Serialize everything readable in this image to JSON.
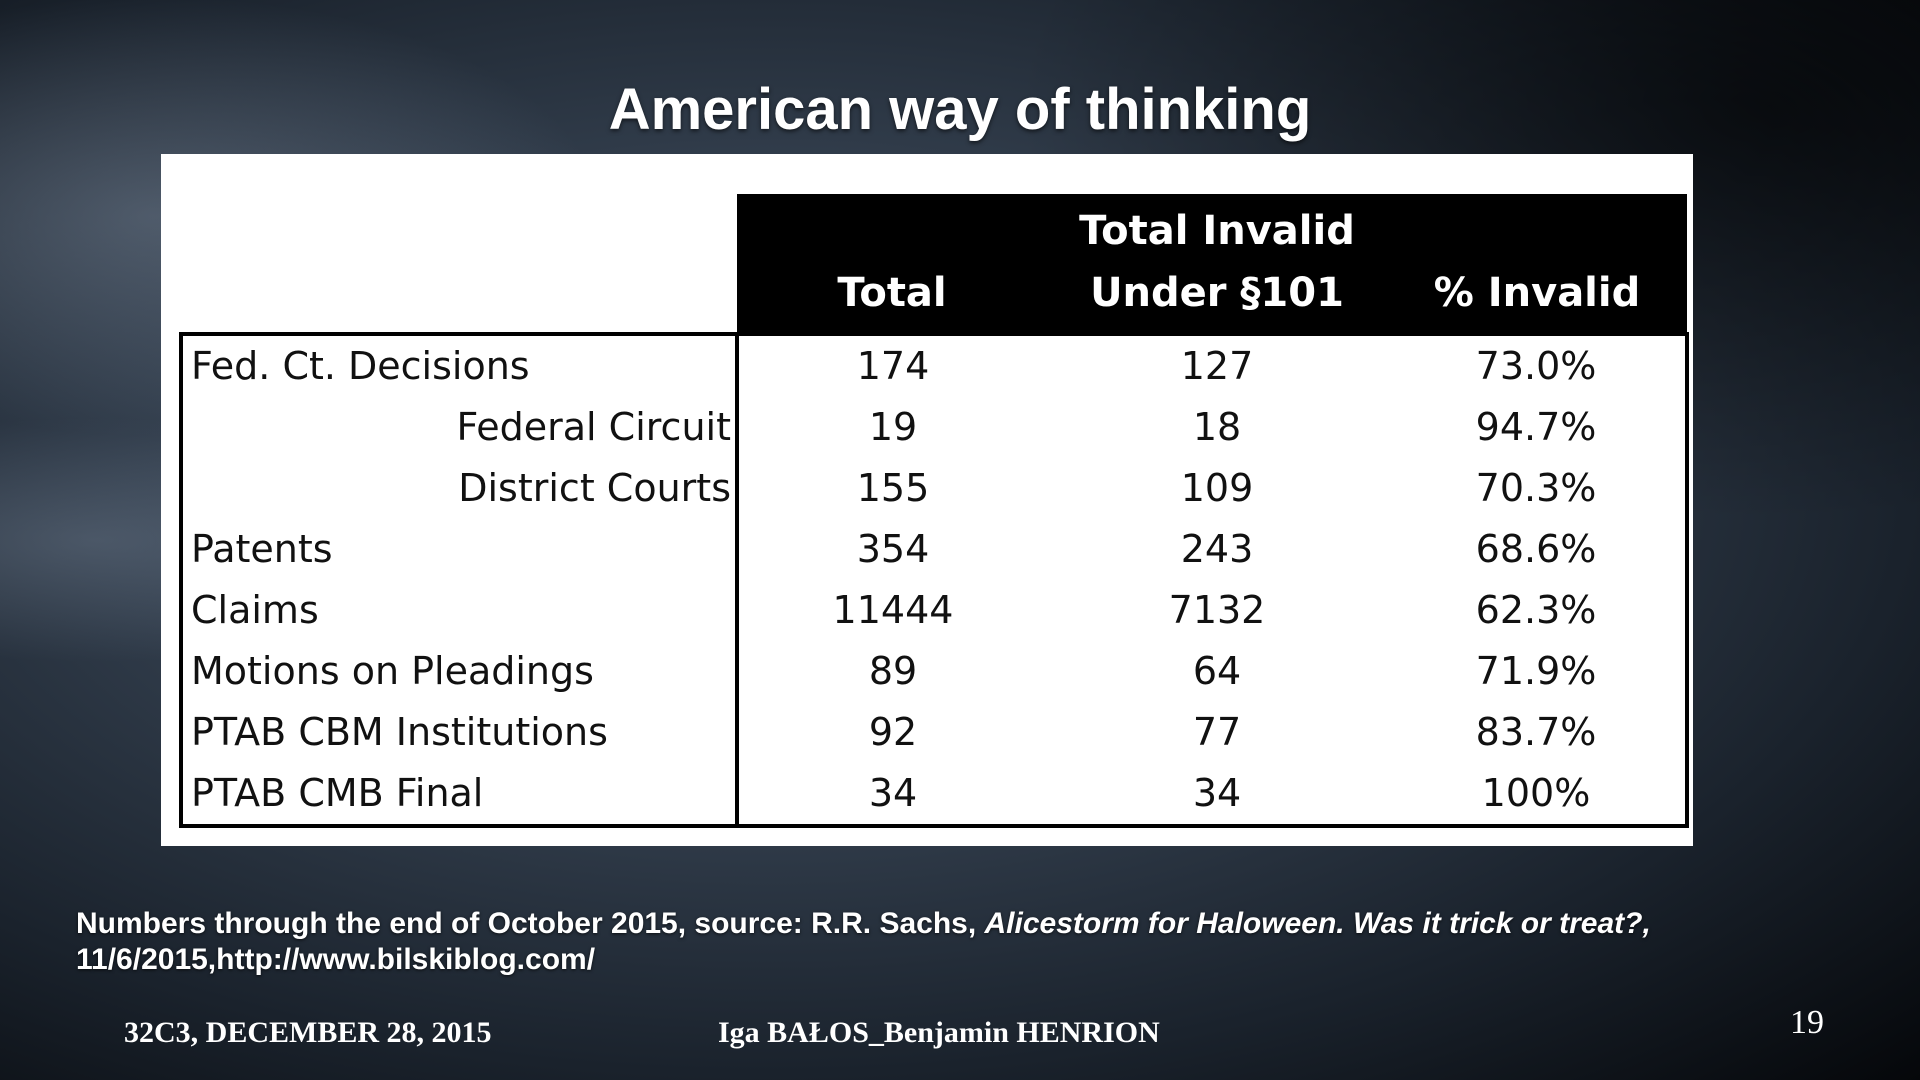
{
  "slide": {
    "title": "American way of thinking",
    "page_number": "19"
  },
  "table": {
    "headers": {
      "total": "Total",
      "invalid_line1": "Total Invalid",
      "invalid_line2": "Under §101",
      "percent": "% Invalid"
    },
    "rows": [
      {
        "label": "Fed. Ct. Decisions",
        "total": "174",
        "invalid": "127",
        "percent": "73.0%"
      },
      {
        "label": "Federal Circuit",
        "total": "19",
        "invalid": "18",
        "percent": "94.7%"
      },
      {
        "label": "District Courts",
        "total": "155",
        "invalid": "109",
        "percent": "70.3%"
      },
      {
        "label": "Patents",
        "total": "354",
        "invalid": "243",
        "percent": "68.6%"
      },
      {
        "label": "Claims",
        "total": "11444",
        "invalid": "7132",
        "percent": "62.3%"
      },
      {
        "label": "Motions on Pleadings",
        "total": "89",
        "invalid": "64",
        "percent": "71.9%"
      },
      {
        "label": "PTAB CBM Institutions",
        "total": "92",
        "invalid": "77",
        "percent": "83.7%"
      },
      {
        "label": "PTAB CMB Final",
        "total": "34",
        "invalid": "34",
        "percent": "100%"
      }
    ]
  },
  "source": {
    "prefix": "Numbers through the end of October 2015, source: R.R. Sachs, ",
    "italic_title": "Alicestorm for Haloween. Was it trick or treat?,",
    "line2": "11/6/2015,http://www.bilskiblog.com/"
  },
  "footer": {
    "left": "32C3, DECEMBER 28, 2015",
    "center": "Iga BAŁOS_Benjamin HENRION"
  }
}
